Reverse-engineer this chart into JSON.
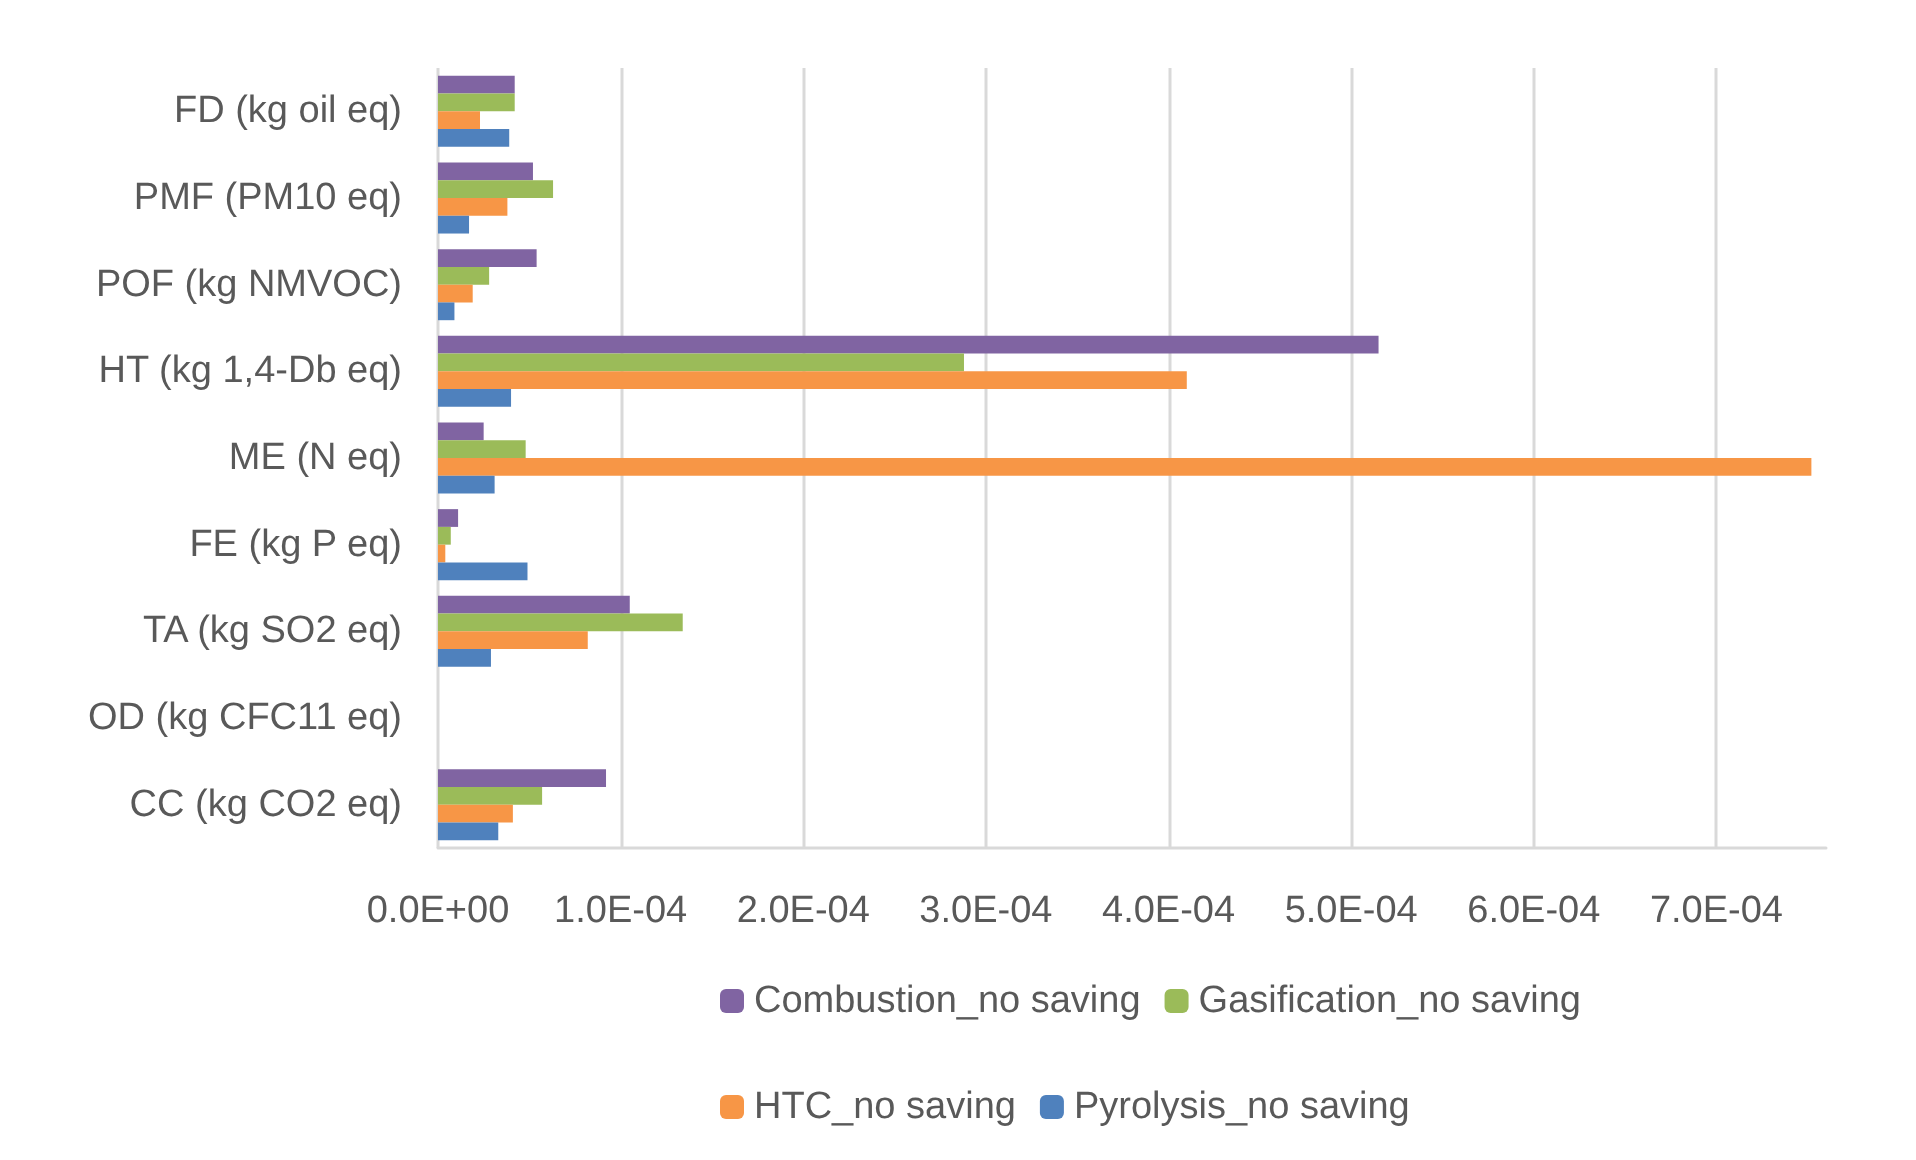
{
  "chart_data": {
    "type": "bar",
    "orientation": "horizontal",
    "categories": [
      "FD (kg oil eq)",
      "PMF (PM10 eq)",
      "POF (kg NMVOC)",
      "HT (kg 1,4-Db eq)",
      "ME (N eq)",
      "FE (kg P eq)",
      "TA (kg SO2 eq)",
      "OD (kg CFC11 eq)",
      "CC (kg CO2 eq)"
    ],
    "series": [
      {
        "name": "Combustion_no saving",
        "color": "#8064a2",
        "values": [
          4.2e-05,
          5.2e-05,
          5.4e-05,
          0.000515,
          2.5e-05,
          1.1e-05,
          0.000105,
          0,
          9.2e-05
        ]
      },
      {
        "name": "Gasification_no saving",
        "color": "#9bbb59",
        "values": [
          4.2e-05,
          6.3e-05,
          2.8e-05,
          0.000288,
          4.8e-05,
          7e-06,
          0.000134,
          0,
          5.7e-05
        ]
      },
      {
        "name": "HTC_no saving",
        "color": "#f79646",
        "values": [
          2.3e-05,
          3.8e-05,
          1.9e-05,
          0.00041,
          0.000752,
          4e-06,
          8.2e-05,
          0,
          4.1e-05
        ]
      },
      {
        "name": "Pyrolysis_no saving",
        "color": "#4f81bd",
        "values": [
          3.9e-05,
          1.7e-05,
          9e-06,
          4e-05,
          3.1e-05,
          4.9e-05,
          2.9e-05,
          0,
          3.3e-05
        ]
      }
    ],
    "xlim": [
      0,
      0.00076
    ],
    "xticks": [
      {
        "value": 0,
        "label": "0.0E+00"
      },
      {
        "value": 0.0001,
        "label": "1.0E-04"
      },
      {
        "value": 0.0002,
        "label": "2.0E-04"
      },
      {
        "value": 0.0003,
        "label": "3.0E-04"
      },
      {
        "value": 0.0004,
        "label": "4.0E-04"
      },
      {
        "value": 0.0005,
        "label": "5.0E-04"
      },
      {
        "value": 0.0006,
        "label": "6.0E-04"
      },
      {
        "value": 0.0007,
        "label": "7.0E-04"
      }
    ],
    "grid": "x",
    "legend": "bottom"
  }
}
